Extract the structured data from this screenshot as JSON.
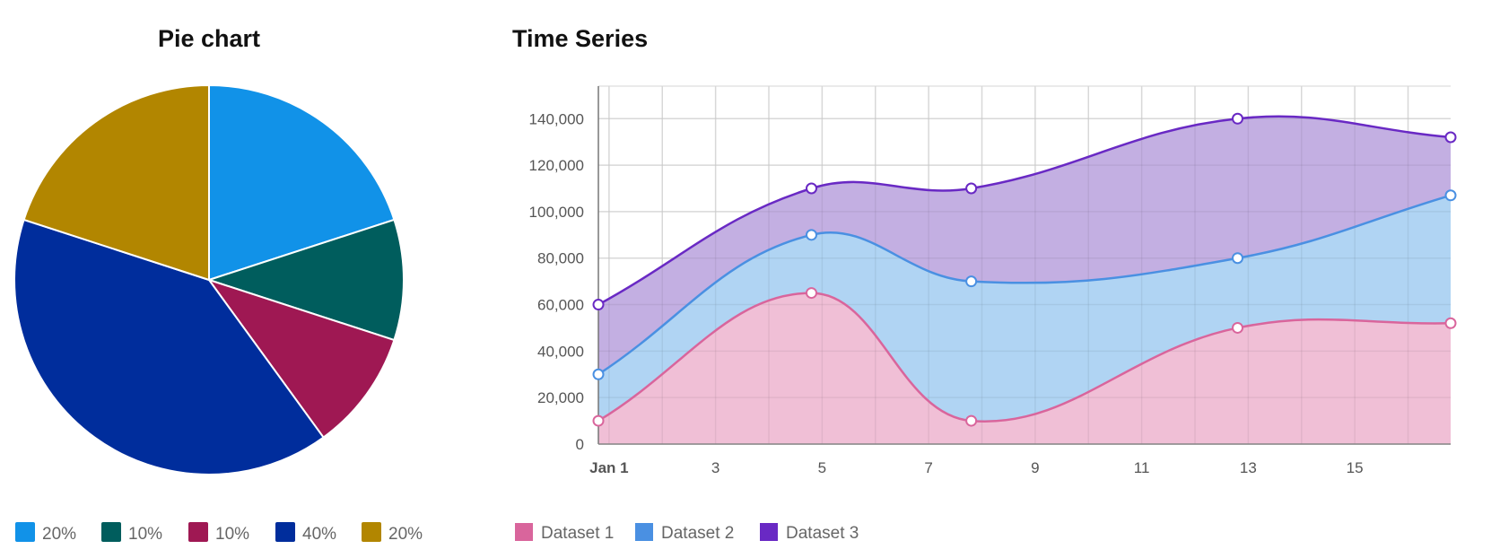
{
  "pie": {
    "title": "Pie chart",
    "chart_data": {
      "type": "pie",
      "title": "Pie chart",
      "slices": [
        {
          "label": "20%",
          "value": 20,
          "color": "#1192e8"
        },
        {
          "label": "10%",
          "value": 10,
          "color": "#005d5d"
        },
        {
          "label": "10%",
          "value": 10,
          "color": "#9f1853"
        },
        {
          "label": "40%",
          "value": 40,
          "color": "#002d9c"
        },
        {
          "label": "20%",
          "value": 20,
          "color": "#b28600"
        }
      ],
      "legend": "bottom-left"
    }
  },
  "timeseries": {
    "title": "Time Series",
    "chart_data": {
      "type": "area",
      "stacked": true,
      "smooth": true,
      "title": "Time Series",
      "x_unit": "day of January",
      "x": [
        0.8,
        4.8,
        7.8,
        12.8,
        16.8
      ],
      "xlim": [
        0.8,
        16.8
      ],
      "x_ticks": [
        {
          "value": 1,
          "label": "Jan 1",
          "bold": true
        },
        {
          "value": 3,
          "label": "3"
        },
        {
          "value": 5,
          "label": "5"
        },
        {
          "value": 7,
          "label": "7"
        },
        {
          "value": 9,
          "label": "9"
        },
        {
          "value": 11,
          "label": "11"
        },
        {
          "value": 13,
          "label": "13"
        },
        {
          "value": 15,
          "label": "15"
        }
      ],
      "ylim": [
        0,
        154000
      ],
      "y_ticks": [
        {
          "value": 0,
          "label": "0"
        },
        {
          "value": 20000,
          "label": "20,000"
        },
        {
          "value": 40000,
          "label": "40,000"
        },
        {
          "value": 60000,
          "label": "60,000"
        },
        {
          "value": 80000,
          "label": "80,000"
        },
        {
          "value": 100000,
          "label": "100,000"
        },
        {
          "value": 120000,
          "label": "120,000"
        },
        {
          "value": 140000,
          "label": "140,000"
        }
      ],
      "grid": true,
      "legend": "bottom-left",
      "series": [
        {
          "name": "Dataset 1",
          "values": [
            10000,
            65000,
            10000,
            50000,
            52000
          ],
          "color": "#d9659c",
          "fill": "#efbad3"
        },
        {
          "name": "Dataset 2",
          "values": [
            20000,
            25000,
            60000,
            30000,
            55000
          ],
          "color": "#4a90e2",
          "fill": "#a9d0f2"
        },
        {
          "name": "Dataset 3",
          "values": [
            30000,
            20000,
            40000,
            60000,
            25000
          ],
          "color": "#6929c4",
          "fill": "#bea8e0"
        }
      ]
    }
  }
}
